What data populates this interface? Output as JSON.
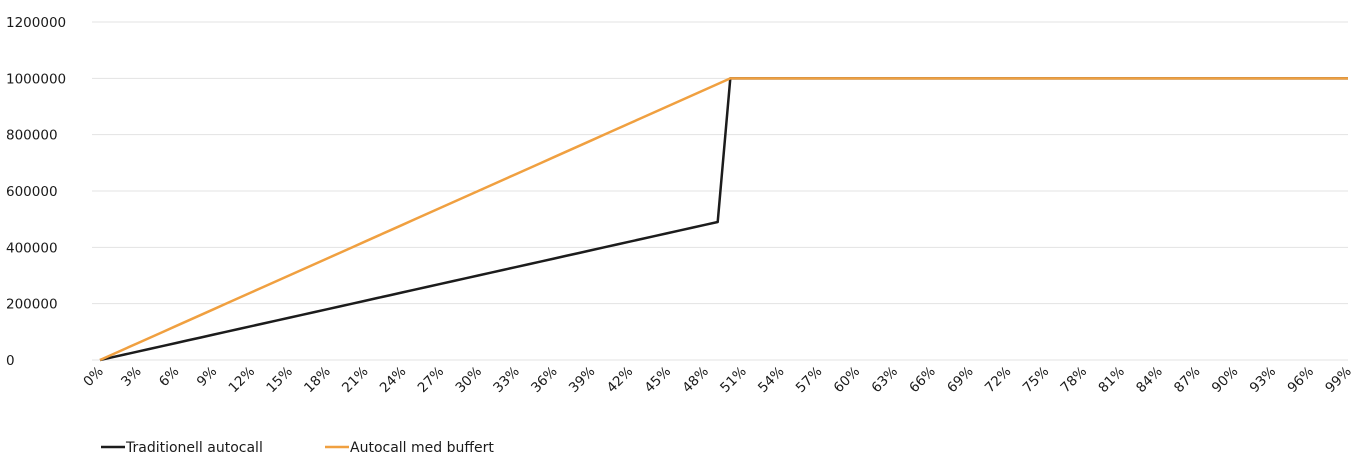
{
  "chart_data": {
    "type": "line",
    "x": [
      0,
      1,
      2,
      3,
      4,
      5,
      6,
      7,
      8,
      9,
      10,
      11,
      12,
      13,
      14,
      15,
      16,
      17,
      18,
      19,
      20,
      21,
      22,
      23,
      24,
      25,
      26,
      27,
      28,
      29,
      30,
      31,
      32,
      33,
      34,
      35,
      36,
      37,
      38,
      39,
      40,
      41,
      42,
      43,
      44,
      45,
      46,
      47,
      48,
      49,
      50,
      51,
      52,
      53,
      54,
      55,
      56,
      57,
      58,
      59,
      60,
      61,
      62,
      63,
      64,
      65,
      66,
      67,
      68,
      69,
      70,
      71,
      72,
      73,
      74,
      75,
      76,
      77,
      78,
      79,
      80,
      81,
      82,
      83,
      84,
      85,
      86,
      87,
      88,
      89,
      90,
      91,
      92,
      93,
      94,
      95,
      96,
      97,
      98,
      99
    ],
    "x_tick_labels": [
      "0%",
      "3%",
      "6%",
      "9%",
      "12%",
      "15%",
      "18%",
      "21%",
      "24%",
      "27%",
      "30%",
      "33%",
      "36%",
      "39%",
      "42%",
      "45%",
      "48%",
      "51%",
      "54%",
      "57%",
      "60%",
      "63%",
      "66%",
      "69%",
      "72%",
      "75%",
      "78%",
      "81%",
      "84%",
      "87%",
      "90%",
      "93%",
      "96%",
      "99%"
    ],
    "y_tick_labels": [
      "0",
      "200000",
      "400000",
      "600000",
      "800000",
      "1000000",
      "1200000"
    ],
    "ylim": [
      0,
      1200000
    ],
    "series": [
      {
        "name": "Traditionell autocall",
        "color": "#1c1c1c",
        "values": [
          0,
          10000,
          20000,
          30000,
          40000,
          50000,
          60000,
          70000,
          80000,
          90000,
          100000,
          110000,
          120000,
          130000,
          140000,
          150000,
          160000,
          170000,
          180000,
          190000,
          200000,
          210000,
          220000,
          230000,
          240000,
          250000,
          260000,
          270000,
          280000,
          290000,
          300000,
          310000,
          320000,
          330000,
          340000,
          350000,
          360000,
          370000,
          380000,
          390000,
          400000,
          410000,
          420000,
          430000,
          440000,
          450000,
          460000,
          470000,
          480000,
          490000,
          1000000,
          1000000,
          1000000,
          1000000,
          1000000,
          1000000,
          1000000,
          1000000,
          1000000,
          1000000,
          1000000,
          1000000,
          1000000,
          1000000,
          1000000,
          1000000,
          1000000,
          1000000,
          1000000,
          1000000,
          1000000,
          1000000,
          1000000,
          1000000,
          1000000,
          1000000,
          1000000,
          1000000,
          1000000,
          1000000,
          1000000,
          1000000,
          1000000,
          1000000,
          1000000,
          1000000,
          1000000,
          1000000,
          1000000,
          1000000,
          1000000,
          1000000,
          1000000,
          1000000,
          1000000,
          1000000,
          1000000,
          1000000,
          1000000,
          1000000
        ]
      },
      {
        "name": "Autocall med buffert",
        "color": "#f0a040",
        "values": [
          0,
          20000,
          40000,
          60000,
          80000,
          100000,
          120000,
          140000,
          160000,
          180000,
          200000,
          220000,
          240000,
          260000,
          280000,
          300000,
          320000,
          340000,
          360000,
          380000,
          400000,
          420000,
          440000,
          460000,
          480000,
          500000,
          520000,
          540000,
          560000,
          580000,
          600000,
          620000,
          640000,
          660000,
          680000,
          700000,
          720000,
          740000,
          760000,
          780000,
          800000,
          820000,
          840000,
          860000,
          880000,
          900000,
          920000,
          940000,
          960000,
          980000,
          1000000,
          1000000,
          1000000,
          1000000,
          1000000,
          1000000,
          1000000,
          1000000,
          1000000,
          1000000,
          1000000,
          1000000,
          1000000,
          1000000,
          1000000,
          1000000,
          1000000,
          1000000,
          1000000,
          1000000,
          1000000,
          1000000,
          1000000,
          1000000,
          1000000,
          1000000,
          1000000,
          1000000,
          1000000,
          1000000,
          1000000,
          1000000,
          1000000,
          1000000,
          1000000,
          1000000,
          1000000,
          1000000,
          1000000,
          1000000,
          1000000,
          1000000,
          1000000,
          1000000,
          1000000,
          1000000,
          1000000,
          1000000,
          1000000,
          1000000
        ]
      }
    ],
    "grid": true,
    "legend_position": "bottom-left"
  }
}
